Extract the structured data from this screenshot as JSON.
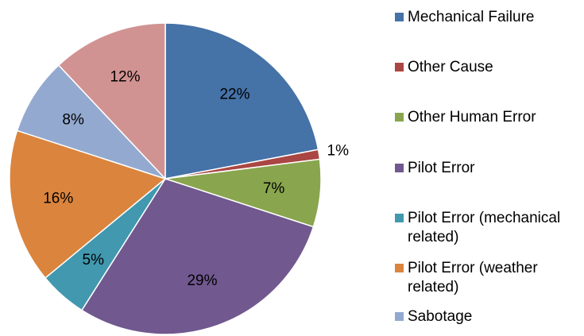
{
  "chart_data": {
    "type": "pie",
    "categories": [
      "Mechanical Failure",
      "Other Cause",
      "Other Human Error",
      "Pilot Error",
      "Pilot Error (mechanical related)",
      "Pilot Error (weather related)",
      "Sabotage",
      null
    ],
    "values": [
      22,
      1,
      7,
      29,
      5,
      16,
      8,
      12
    ],
    "value_labels": [
      "22%",
      "1%",
      "7%",
      "29%",
      "5%",
      "16%",
      "8%",
      "12%"
    ],
    "colors": [
      "#4572a7",
      "#aa4643",
      "#89a54e",
      "#71588f",
      "#4198af",
      "#db843d",
      "#93a9cf",
      "#d19392"
    ]
  }
}
